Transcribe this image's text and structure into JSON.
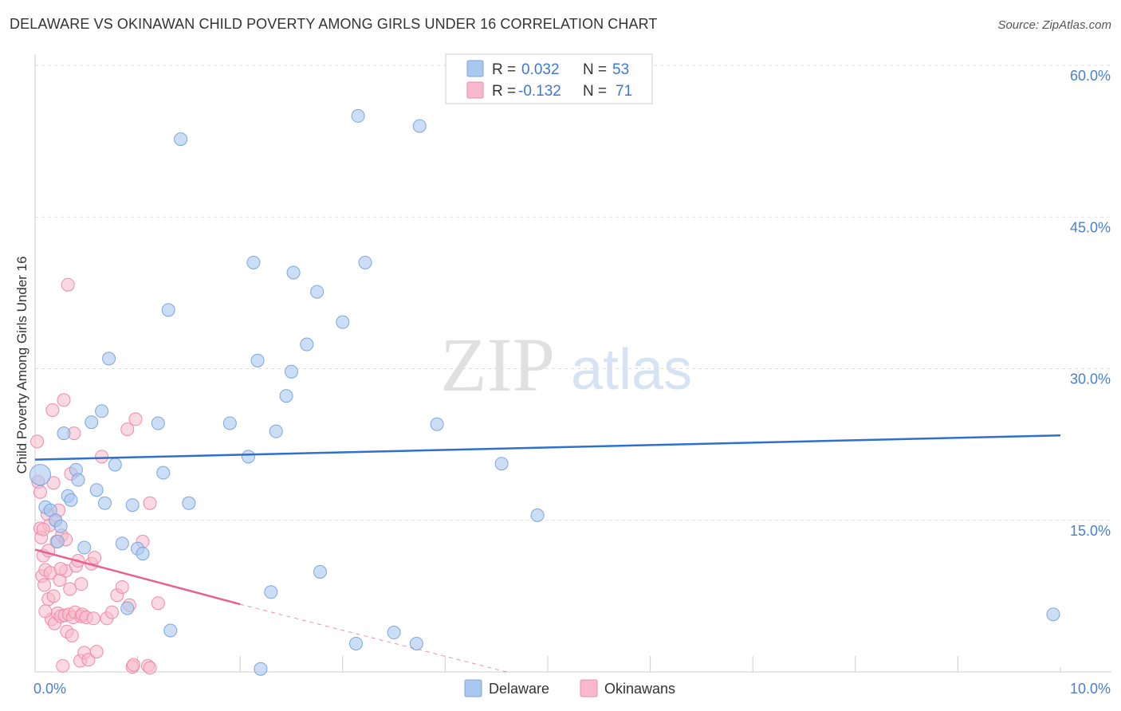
{
  "title": "DELAWARE VS OKINAWAN CHILD POVERTY AMONG GIRLS UNDER 16 CORRELATION CHART",
  "source": "Source: ZipAtlas.com",
  "watermark": {
    "zip": "ZIP",
    "atlas": "atlas"
  },
  "colors": {
    "delaware_fill": "#a9c8f0",
    "delaware_stroke": "#7ba6de",
    "delaware_line": "#2f6fd0",
    "okinawan_fill": "#f7b9cb",
    "okinawan_stroke": "#ee8aa8",
    "okinawan_line": "#e5628f",
    "tick": "#4a7fcf",
    "grid": "#dddddd"
  },
  "legend": {
    "r_label": "R =",
    "n_label": "N =",
    "delaware": {
      "r": "0.032",
      "n": "53"
    },
    "okinawan": {
      "r": "-0.132",
      "n": "71"
    }
  },
  "chart_data": {
    "type": "scatter",
    "title": "DELAWARE VS OKINAWAN CHILD POVERTY AMONG GIRLS UNDER 16 CORRELATION CHART",
    "xlabel": "",
    "ylabel": "Child Poverty Among Girls Under 16",
    "xlim": [
      0,
      10
    ],
    "ylim": [
      0,
      60
    ],
    "x_tick_labels": [
      "0.0%",
      "10.0%"
    ],
    "y_ticks": [
      15,
      30,
      45,
      60
    ],
    "y_tick_labels": [
      "15.0%",
      "30.0%",
      "45.0%",
      "60.0%"
    ],
    "grid": true,
    "legend_position": "top-center",
    "series": [
      {
        "name": "Delaware",
        "trend": {
          "x": [
            0,
            10
          ],
          "y": [
            21.0,
            23.4
          ]
        },
        "points": [
          [
            0.05,
            19.5
          ],
          [
            0.1,
            16.3
          ],
          [
            0.15,
            16.0
          ],
          [
            0.2,
            15.0
          ],
          [
            0.25,
            14.4
          ],
          [
            0.22,
            12.9
          ],
          [
            0.28,
            23.6
          ],
          [
            0.32,
            17.4
          ],
          [
            0.35,
            17.0
          ],
          [
            0.4,
            20.0
          ],
          [
            0.42,
            19.0
          ],
          [
            0.48,
            12.3
          ],
          [
            0.55,
            24.7
          ],
          [
            0.6,
            18.0
          ],
          [
            0.65,
            25.8
          ],
          [
            0.68,
            16.7
          ],
          [
            0.72,
            31.0
          ],
          [
            0.78,
            20.5
          ],
          [
            0.85,
            12.7
          ],
          [
            0.9,
            6.3
          ],
          [
            0.95,
            16.5
          ],
          [
            1.0,
            12.2
          ],
          [
            1.05,
            11.7
          ],
          [
            1.2,
            24.6
          ],
          [
            1.25,
            19.7
          ],
          [
            1.3,
            35.8
          ],
          [
            1.42,
            52.7
          ],
          [
            1.32,
            4.1
          ],
          [
            1.5,
            16.7
          ],
          [
            1.9,
            24.6
          ],
          [
            2.08,
            21.3
          ],
          [
            2.13,
            40.5
          ],
          [
            2.17,
            30.8
          ],
          [
            2.2,
            0.3
          ],
          [
            2.3,
            7.9
          ],
          [
            2.35,
            23.8
          ],
          [
            2.45,
            27.3
          ],
          [
            2.5,
            29.7
          ],
          [
            2.52,
            39.5
          ],
          [
            2.65,
            32.4
          ],
          [
            2.75,
            37.6
          ],
          [
            2.78,
            9.9
          ],
          [
            3.0,
            34.6
          ],
          [
            3.13,
            2.8
          ],
          [
            3.15,
            55.0
          ],
          [
            3.22,
            40.5
          ],
          [
            3.5,
            3.9
          ],
          [
            3.72,
            2.8
          ],
          [
            3.75,
            54.0
          ],
          [
            3.92,
            24.5
          ],
          [
            4.55,
            20.6
          ],
          [
            4.9,
            15.5
          ],
          [
            9.93,
            5.7
          ]
        ]
      },
      {
        "name": "Okinawans",
        "trend": {
          "x": [
            0,
            2.0
          ],
          "y": [
            12.1,
            6.7
          ]
        },
        "trend_dashed": {
          "x": [
            2.0,
            4.6
          ],
          "y": [
            6.7,
            0.0
          ]
        },
        "points": [
          [
            0.02,
            22.8
          ],
          [
            0.03,
            18.8
          ],
          [
            0.05,
            14.2
          ],
          [
            0.05,
            17.8
          ],
          [
            0.06,
            13.3
          ],
          [
            0.07,
            9.5
          ],
          [
            0.08,
            11.5
          ],
          [
            0.09,
            8.6
          ],
          [
            0.1,
            10.1
          ],
          [
            0.12,
            15.6
          ],
          [
            0.13,
            7.2
          ],
          [
            0.14,
            14.5
          ],
          [
            0.15,
            9.8
          ],
          [
            0.16,
            5.2
          ],
          [
            0.17,
            25.9
          ],
          [
            0.18,
            18.7
          ],
          [
            0.19,
            4.8
          ],
          [
            0.2,
            15.0
          ],
          [
            0.21,
            12.9
          ],
          [
            0.22,
            5.8
          ],
          [
            0.23,
            16.0
          ],
          [
            0.24,
            9.1
          ],
          [
            0.25,
            5.5
          ],
          [
            0.26,
            13.5
          ],
          [
            0.27,
            0.6
          ],
          [
            0.28,
            26.9
          ],
          [
            0.29,
            5.6
          ],
          [
            0.3,
            10.0
          ],
          [
            0.31,
            4.0
          ],
          [
            0.32,
            38.3
          ],
          [
            0.33,
            5.7
          ],
          [
            0.34,
            8.2
          ],
          [
            0.35,
            19.6
          ],
          [
            0.36,
            3.6
          ],
          [
            0.37,
            5.4
          ],
          [
            0.38,
            23.6
          ],
          [
            0.39,
            5.9
          ],
          [
            0.4,
            10.5
          ],
          [
            0.42,
            11.0
          ],
          [
            0.44,
            1.1
          ],
          [
            0.45,
            5.5
          ],
          [
            0.46,
            5.7
          ],
          [
            0.48,
            1.9
          ],
          [
            0.5,
            5.4
          ],
          [
            0.52,
            1.2
          ],
          [
            0.55,
            10.7
          ],
          [
            0.57,
            5.3
          ],
          [
            0.6,
            2.0
          ],
          [
            0.65,
            21.3
          ],
          [
            0.7,
            5.3
          ],
          [
            0.75,
            5.9
          ],
          [
            0.8,
            7.6
          ],
          [
            0.85,
            8.4
          ],
          [
            0.9,
            24.0
          ],
          [
            0.92,
            6.6
          ],
          [
            0.95,
            0.5
          ],
          [
            0.96,
            0.7
          ],
          [
            1.1,
            0.6
          ],
          [
            1.12,
            0.4
          ],
          [
            0.98,
            25.0
          ],
          [
            1.05,
            12.9
          ],
          [
            1.12,
            16.7
          ],
          [
            1.2,
            6.8
          ],
          [
            0.08,
            14.1
          ],
          [
            0.1,
            6.0
          ],
          [
            0.13,
            12.0
          ],
          [
            0.18,
            7.5
          ],
          [
            0.3,
            13.1
          ],
          [
            0.58,
            11.3
          ],
          [
            0.45,
            8.7
          ],
          [
            0.25,
            10.2
          ]
        ]
      }
    ]
  },
  "bottom_legend": {
    "delaware": "Delaware",
    "okinawans": "Okinawans"
  }
}
